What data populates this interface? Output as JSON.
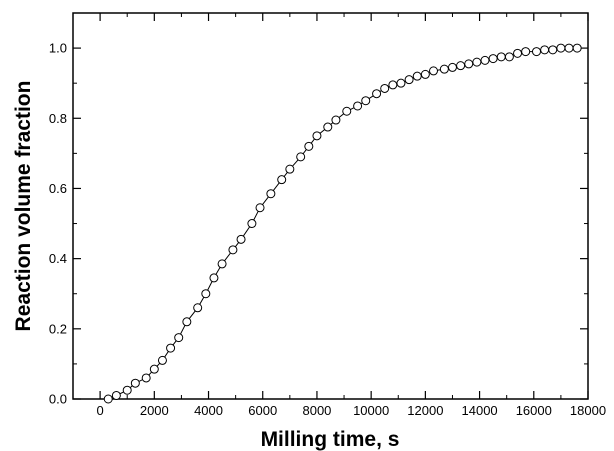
{
  "chart_data": {
    "type": "line",
    "title": "",
    "xlabel": "Milling time, s",
    "ylabel": "Reaction volume fraction",
    "xlim": [
      -1000,
      18000
    ],
    "ylim": [
      0.0,
      1.1
    ],
    "x_ticks": [
      0,
      2000,
      4000,
      6000,
      8000,
      10000,
      12000,
      14000,
      16000,
      18000
    ],
    "y_ticks": [
      0.0,
      0.2,
      0.4,
      0.6,
      0.8,
      1.0
    ],
    "x_tick_labels": [
      "0",
      "2000",
      "4000",
      "6000",
      "8000",
      "10000",
      "12000",
      "14000",
      "16000",
      "18000"
    ],
    "y_tick_labels": [
      "0.0",
      "0.2",
      "0.4",
      "0.6",
      "0.8",
      "1.0"
    ],
    "grid": false,
    "marker": "open-circle",
    "line_color": "#000000",
    "series": [
      {
        "x": [
          300,
          600,
          1000,
          1300,
          1700,
          2000,
          2300,
          2600,
          2900,
          3200,
          3600,
          3900,
          4200,
          4500,
          4900,
          5200,
          5600,
          5900,
          6300,
          6700,
          7000,
          7400,
          7700,
          8000,
          8400,
          8700,
          9100,
          9500,
          9800,
          10200,
          10500,
          10800,
          11100,
          11400,
          11700,
          12000,
          12300,
          12700,
          13000,
          13300,
          13600,
          13900,
          14200,
          14500,
          14800,
          15100,
          15400,
          15700,
          16100,
          16400,
          16700,
          17000,
          17300,
          17600
        ],
        "y": [
          0.0,
          0.01,
          0.025,
          0.045,
          0.06,
          0.085,
          0.11,
          0.145,
          0.175,
          0.22,
          0.26,
          0.3,
          0.345,
          0.385,
          0.425,
          0.455,
          0.5,
          0.545,
          0.585,
          0.625,
          0.655,
          0.69,
          0.72,
          0.75,
          0.775,
          0.795,
          0.82,
          0.835,
          0.85,
          0.87,
          0.885,
          0.895,
          0.9,
          0.91,
          0.92,
          0.925,
          0.935,
          0.94,
          0.945,
          0.95,
          0.955,
          0.96,
          0.965,
          0.97,
          0.975,
          0.975,
          0.985,
          0.99,
          0.99,
          0.995,
          0.995,
          1.0,
          1.0,
          1.0
        ]
      }
    ]
  }
}
